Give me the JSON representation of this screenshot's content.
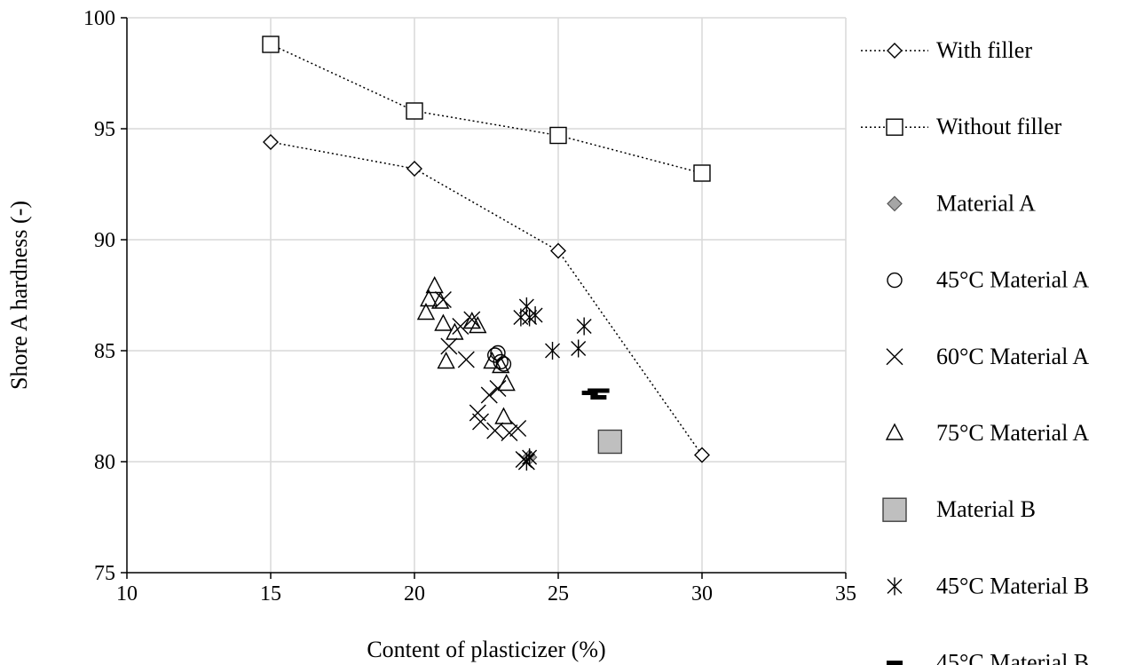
{
  "chart_data": {
    "type": "scatter",
    "title": "",
    "xlabel": "Content of plasticizer (%)",
    "ylabel": "Shore A hardness (-)",
    "xlim": [
      10,
      35
    ],
    "ylim": [
      75,
      100
    ],
    "xticks": [
      10,
      15,
      20,
      25,
      30,
      35
    ],
    "yticks": [
      75,
      80,
      85,
      90,
      95,
      100
    ],
    "grid": true,
    "legend_position": "right",
    "series": [
      {
        "name": "With filler",
        "marker": "diamond-open",
        "line": "dotted",
        "x": [
          15,
          20,
          25,
          30
        ],
        "y": [
          94.4,
          93.2,
          89.5,
          80.3
        ]
      },
      {
        "name": "Without filler",
        "marker": "square-open",
        "line": "dotted",
        "x": [
          15,
          20,
          25,
          30
        ],
        "y": [
          98.8,
          95.8,
          94.7,
          93.0
        ]
      },
      {
        "name": "Material A",
        "marker": "diamond-filled",
        "line": "none",
        "x": [
          24.0
        ],
        "y": [
          80.2
        ]
      },
      {
        "name": "45°C Material A",
        "marker": "circle-open",
        "line": "none",
        "x": [
          22.8,
          22.9,
          23.0,
          23.1
        ],
        "y": [
          84.8,
          84.9,
          84.5,
          84.4
        ]
      },
      {
        "name": "60°C Material A",
        "marker": "x",
        "line": "none",
        "x": [
          21.0,
          21.2,
          21.6,
          21.8,
          22.0,
          22.2,
          22.3,
          22.6,
          22.8,
          22.9,
          23.3,
          23.6,
          23.8,
          23.9
        ],
        "y": [
          87.3,
          85.2,
          86.1,
          84.6,
          86.4,
          82.2,
          81.8,
          83.0,
          81.4,
          83.3,
          81.3,
          81.5,
          80.1,
          80.0
        ]
      },
      {
        "name": "75°C Material A",
        "marker": "triangle-open",
        "line": "none",
        "x": [
          20.4,
          20.5,
          20.7,
          20.9,
          21.0,
          21.1,
          21.4,
          22.0,
          22.2,
          22.7,
          23.0,
          23.1,
          23.2
        ],
        "y": [
          86.7,
          87.3,
          87.9,
          87.2,
          86.2,
          84.5,
          85.8,
          86.3,
          86.1,
          84.5,
          84.3,
          82.0,
          83.5
        ]
      },
      {
        "name": "Material B",
        "marker": "square-filled",
        "line": "none",
        "x": [
          26.8
        ],
        "y": [
          80.9
        ]
      },
      {
        "name": "45°C Material B",
        "marker": "asterisk",
        "line": "none",
        "x": [
          23.7,
          23.9,
          24.0,
          24.2,
          24.8,
          25.7,
          25.9,
          23.9,
          24.0
        ],
        "y": [
          86.5,
          87.0,
          86.5,
          86.6,
          85.0,
          85.1,
          86.1,
          80.0,
          80.2
        ]
      },
      {
        "name": "45°C Material B",
        "marker": "dash",
        "line": "none",
        "x": [
          26.1,
          26.3,
          26.4,
          26.5
        ],
        "y": [
          83.1,
          83.2,
          82.9,
          83.2
        ]
      }
    ]
  }
}
